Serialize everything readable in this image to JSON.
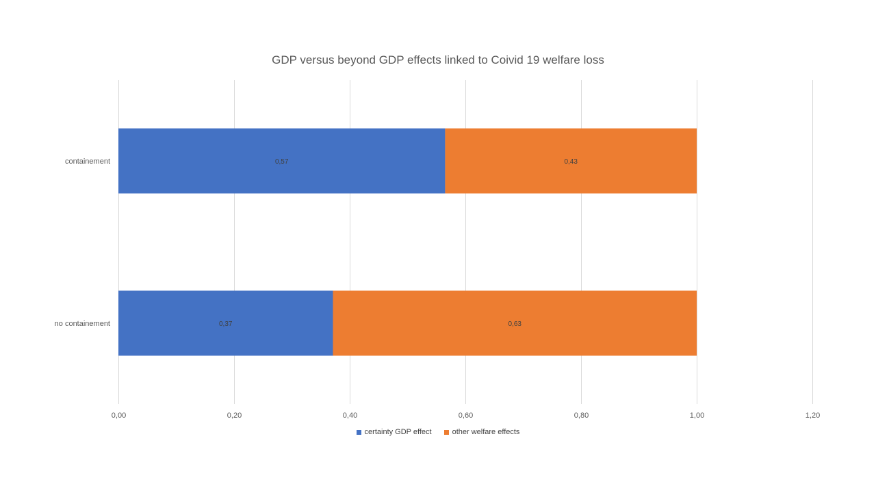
{
  "chart_data": {
    "type": "bar",
    "orientation": "horizontal",
    "stacked": true,
    "title": "GDP versus  beyond GDP effects linked to Coivid 19 welfare loss",
    "categories": [
      "containement",
      "no containement"
    ],
    "series": [
      {
        "name": "certainty GDP effect",
        "values": [
          0.565,
          0.371
        ],
        "labels": [
          "0,57",
          "0,37"
        ],
        "color": "#4472C4"
      },
      {
        "name": "other welfare effects",
        "values": [
          0.435,
          0.629
        ],
        "labels": [
          "0,43",
          "0,63"
        ],
        "color": "#ED7D31"
      }
    ],
    "xlim": [
      0,
      1.2
    ],
    "x_ticks": [
      0,
      0.2,
      0.4,
      0.6,
      0.8,
      1.0,
      1.2
    ],
    "x_tick_labels": [
      "0,00",
      "0,20",
      "0,40",
      "0,60",
      "0,80",
      "1,00",
      "1,20"
    ],
    "grid": true,
    "legend_position": "bottom"
  }
}
